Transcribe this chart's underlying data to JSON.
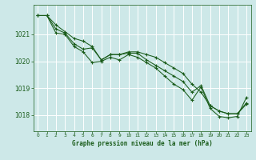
{
  "title": "Graphe pression niveau de la mer (hPa)",
  "bg_color": "#cde8e8",
  "grid_color": "#ffffff",
  "line_color": "#1a5c1a",
  "marker_color": "#1a5c1a",
  "xlim": [
    -0.5,
    23.5
  ],
  "ylim": [
    1017.4,
    1022.1
  ],
  "yticks": [
    1018,
    1019,
    1020,
    1021
  ],
  "xticks": [
    0,
    1,
    2,
    3,
    4,
    5,
    6,
    7,
    8,
    9,
    10,
    11,
    12,
    13,
    14,
    15,
    16,
    17,
    18,
    19,
    20,
    21,
    22,
    23
  ],
  "series1_x": [
    0,
    1,
    2,
    3,
    4,
    5,
    6,
    7,
    8,
    9,
    10,
    11,
    12,
    13,
    14,
    15,
    16,
    17,
    18,
    19,
    20,
    21,
    22,
    23
  ],
  "series1_y": [
    1021.7,
    1021.7,
    1021.35,
    1021.1,
    1020.85,
    1020.75,
    1020.55,
    1020.05,
    1020.25,
    1020.25,
    1020.35,
    1020.35,
    1020.25,
    1020.15,
    1019.95,
    1019.75,
    1019.55,
    1019.15,
    1018.85,
    1018.35,
    1018.15,
    1018.05,
    1018.05,
    1018.45
  ],
  "series2_x": [
    0,
    1,
    2,
    3,
    4,
    5,
    6,
    7,
    8,
    9,
    10,
    11,
    12,
    13,
    14,
    15,
    16,
    17,
    18,
    19,
    20,
    21,
    22,
    23
  ],
  "series2_y": [
    1021.7,
    1021.7,
    1021.2,
    1021.05,
    1020.65,
    1020.45,
    1020.5,
    1020.05,
    1020.25,
    1020.25,
    1020.3,
    1020.3,
    1020.05,
    1019.85,
    1019.65,
    1019.45,
    1019.25,
    1018.85,
    1019.1,
    1018.35,
    1018.15,
    1018.05,
    1018.05,
    1018.4
  ],
  "series3_x": [
    0,
    1,
    2,
    3,
    4,
    5,
    6,
    7,
    8,
    9,
    10,
    11,
    12,
    13,
    14,
    15,
    16,
    17,
    18,
    19,
    20,
    21,
    22,
    23
  ],
  "series3_y": [
    1021.7,
    1021.7,
    1021.05,
    1021.0,
    1020.55,
    1020.35,
    1019.95,
    1020.0,
    1020.15,
    1020.05,
    1020.25,
    1020.15,
    1019.95,
    1019.75,
    1019.45,
    1019.15,
    1018.95,
    1018.55,
    1019.05,
    1018.25,
    1017.95,
    1017.9,
    1017.95,
    1018.65
  ]
}
